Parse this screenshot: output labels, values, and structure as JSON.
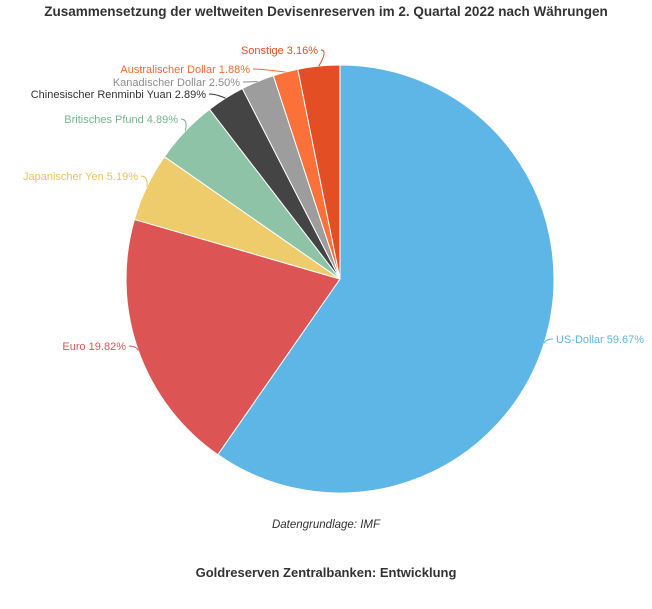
{
  "chart_data": {
    "type": "pie",
    "title": "Zusammensetzung der weltweiten Devisenreserven im 2. Quartal 2022 nach Währungen",
    "slices": [
      {
        "label": "US-Dollar 59.67%",
        "value": 59.67,
        "color": "#5db6e5"
      },
      {
        "label": "Euro 19.82%",
        "value": 19.82,
        "color": "#dd5455"
      },
      {
        "label": "Japanischer Yen 5.19%",
        "value": 5.19,
        "color": "#eecb6b"
      },
      {
        "label": "Britisches Pfund 4.89%",
        "value": 4.89,
        "color": "#8ec3a7"
      },
      {
        "label": "Chinesischer Renminbi Yuan 2.89%",
        "value": 2.89,
        "color": "#444444"
      },
      {
        "label": "Kanadischer Dollar 2.50%",
        "value": 2.5,
        "color": "#9d9d9d"
      },
      {
        "label": "Australischer Dollar 1.88%",
        "value": 1.88,
        "color": "#fb7139"
      },
      {
        "label": "Sonstige 3.16%",
        "value": 3.16,
        "color": "#e44e25"
      }
    ],
    "label_colors": [
      "#5db6e5",
      "#dd5455",
      "#eac35f",
      "#76b693",
      "#333333",
      "#8d8d8d",
      "#f26a2f",
      "#e44e25"
    ]
  },
  "source_note": "Datengrundlage: IMF",
  "next_heading": "Goldreserven Zentralbanken: Entwicklung"
}
